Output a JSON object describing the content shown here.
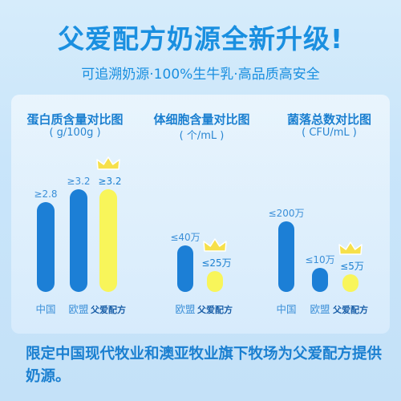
{
  "header": {
    "title": "父爱配方奶源全新升级!",
    "subtitle": "可追溯奶源·100%生牛乳·高品质高安全"
  },
  "colors": {
    "primary": "#1a7fd0",
    "bar_blue": "#1c7fd6",
    "bar_yellow": "#f8f55a",
    "crown": "#f6e04a"
  },
  "chart_data": [
    {
      "type": "bar",
      "title": "蛋白质含量对比图",
      "unit": "( g/100g )",
      "categories": [
        "中国",
        "欧盟",
        "父爱配方"
      ],
      "values": [
        2.8,
        3.2,
        3.2
      ],
      "labels": [
        "≥2.8",
        "≥3.2",
        "≥3.2"
      ],
      "highlight": "父爱配方"
    },
    {
      "type": "bar",
      "title": "体细胞含量对比图",
      "unit": "( 个/mL )",
      "categories": [
        "欧盟",
        "父爱配方"
      ],
      "values": [
        40,
        25
      ],
      "labels": [
        "≤40万",
        "≤25万"
      ],
      "highlight": "父爱配方"
    },
    {
      "type": "bar",
      "title": "菌落总数对比图",
      "unit": "( CFU/mL )",
      "categories": [
        "中国",
        "欧盟",
        "父爱配方"
      ],
      "values": [
        200,
        10,
        5
      ],
      "labels": [
        "≤200万",
        "≤10万",
        "≤5万"
      ],
      "highlight": "父爱配方"
    }
  ],
  "footer": {
    "text": "限定中国现代牧业和澳亚牧业旗下牧场为父爱配方提供奶源。"
  }
}
